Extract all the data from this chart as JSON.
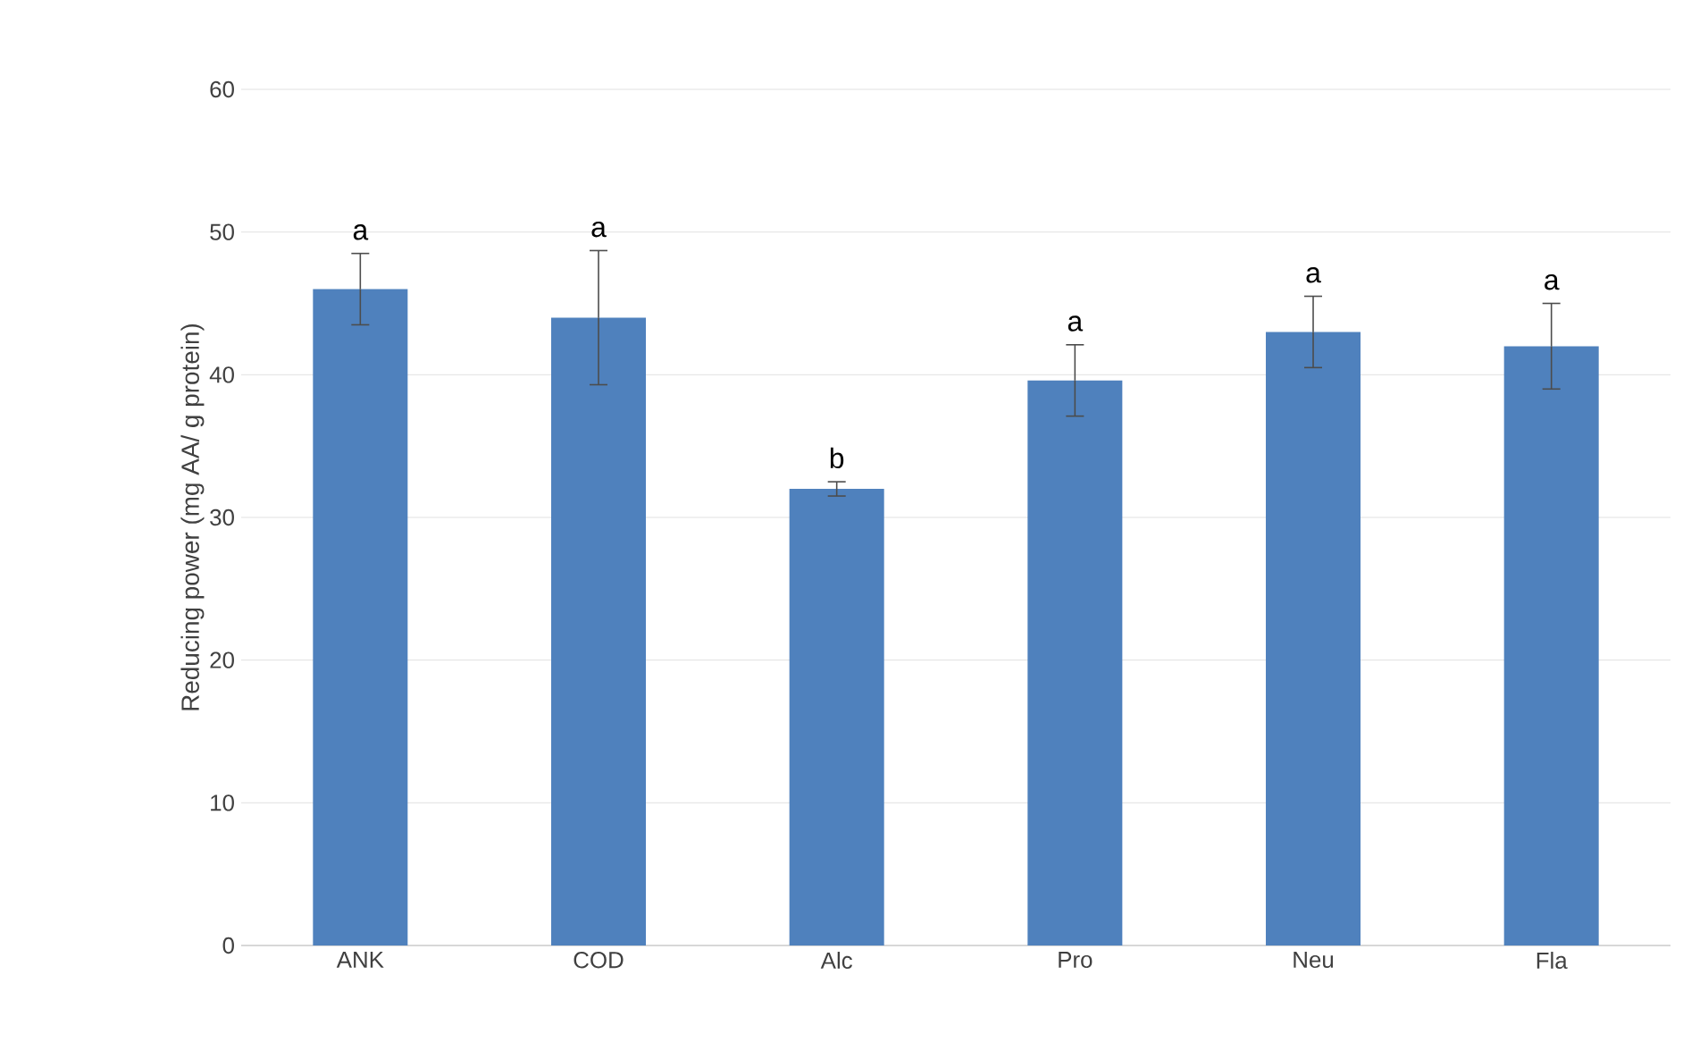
{
  "chart_data": {
    "type": "bar",
    "ylabel": "Reducing power (mg AA/ g protein)",
    "categories": [
      "ANK",
      "COD",
      "Alc",
      "Pro",
      "Neu",
      "Fla"
    ],
    "values": [
      46,
      44,
      32,
      39.6,
      43,
      42
    ],
    "errors": [
      2.5,
      4.7,
      0.5,
      2.5,
      2.5,
      3
    ],
    "color": "#4f81bd",
    "ylim": [
      0,
      60
    ],
    "yticks": [
      0,
      10,
      20,
      30,
      40,
      50,
      60
    ],
    "grid": "y",
    "annotations": [
      {
        "text": "a",
        "x": "ANK",
        "y": 48.5
      },
      {
        "text": "a",
        "x": "COD",
        "y": 48.7
      },
      {
        "text": "b",
        "x": "Alc",
        "y": 32.5
      },
      {
        "text": "a",
        "x": "Pro",
        "y": 42.1
      },
      {
        "text": "a",
        "x": "Neu",
        "y": 45.5
      },
      {
        "text": "a",
        "x": "Fla",
        "y": 45
      }
    ]
  }
}
